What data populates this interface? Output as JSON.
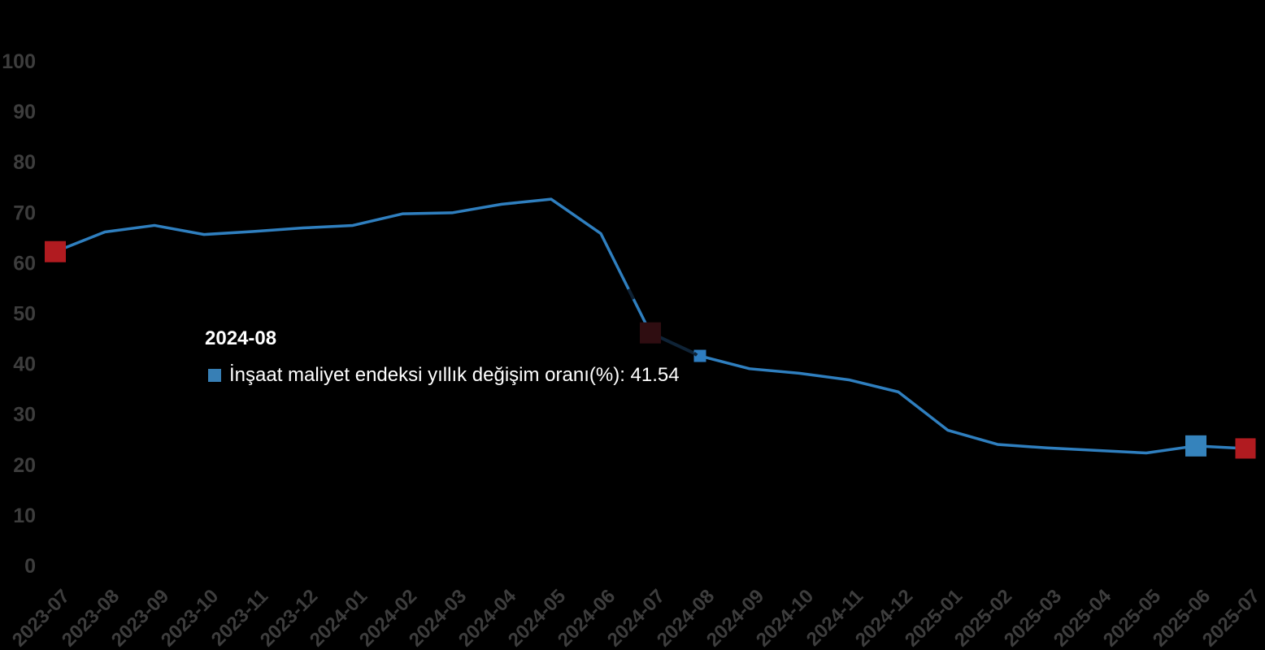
{
  "chart_data": {
    "type": "line",
    "x": [
      "2023-07",
      "2023-08",
      "2023-09",
      "2023-10",
      "2023-11",
      "2023-12",
      "2024-01",
      "2024-02",
      "2024-03",
      "2024-04",
      "2024-05",
      "2024-06",
      "2024-07",
      "2024-08",
      "2024-09",
      "2024-10",
      "2024-11",
      "2024-12",
      "2025-01",
      "2025-02",
      "2025-03",
      "2025-04",
      "2025-05",
      "2025-06",
      "2025-07"
    ],
    "series": [
      {
        "name": "İnşaat maliyet endeksi yıllık değişim oranı(%)",
        "color": "#2f7fbf",
        "values": [
          62.2,
          66.1,
          67.4,
          65.6,
          66.2,
          66.9,
          67.4,
          69.7,
          69.9,
          71.6,
          72.6,
          65.8,
          46.1,
          41.54,
          39.0,
          38.1,
          36.8,
          34.4,
          26.8,
          24.0,
          23.3,
          22.8,
          22.3,
          23.7,
          23.2
        ]
      }
    ],
    "ylim": [
      0,
      100
    ],
    "yticks": [
      0,
      10,
      20,
      30,
      40,
      50,
      60,
      70,
      80,
      90,
      100
    ],
    "grid": false,
    "background": "#000000",
    "axis_label_color": "#3d3d3d",
    "point_markers": [
      {
        "x": "2023-07",
        "color": "#b11b20",
        "size": 26
      },
      {
        "x": "2024-07",
        "color": "#2f0d11",
        "size": 26
      },
      {
        "x": "2024-08",
        "color": "#2e7dc0",
        "size": 15
      },
      {
        "x": "2025-06",
        "color": "#3583bc",
        "size": 26
      },
      {
        "x": "2025-07",
        "color": "#b11b20",
        "size": 25
      }
    ],
    "dim_segment": {
      "from": "2024-07",
      "to": "2024-08",
      "color": "#0f2336"
    },
    "dim_dash": {
      "segment_from": "2024-06",
      "t0": 0.56,
      "t1": 0.66
    }
  },
  "tooltip": {
    "title": "2024-08",
    "series_label": "İnşaat maliyet endeksi yıllık değişim oranı(%)",
    "value": "41.54",
    "line": "İnşaat maliyet endeksi yıllık değişim oranı(%): 41.54",
    "marker_color": "#377fb5"
  }
}
